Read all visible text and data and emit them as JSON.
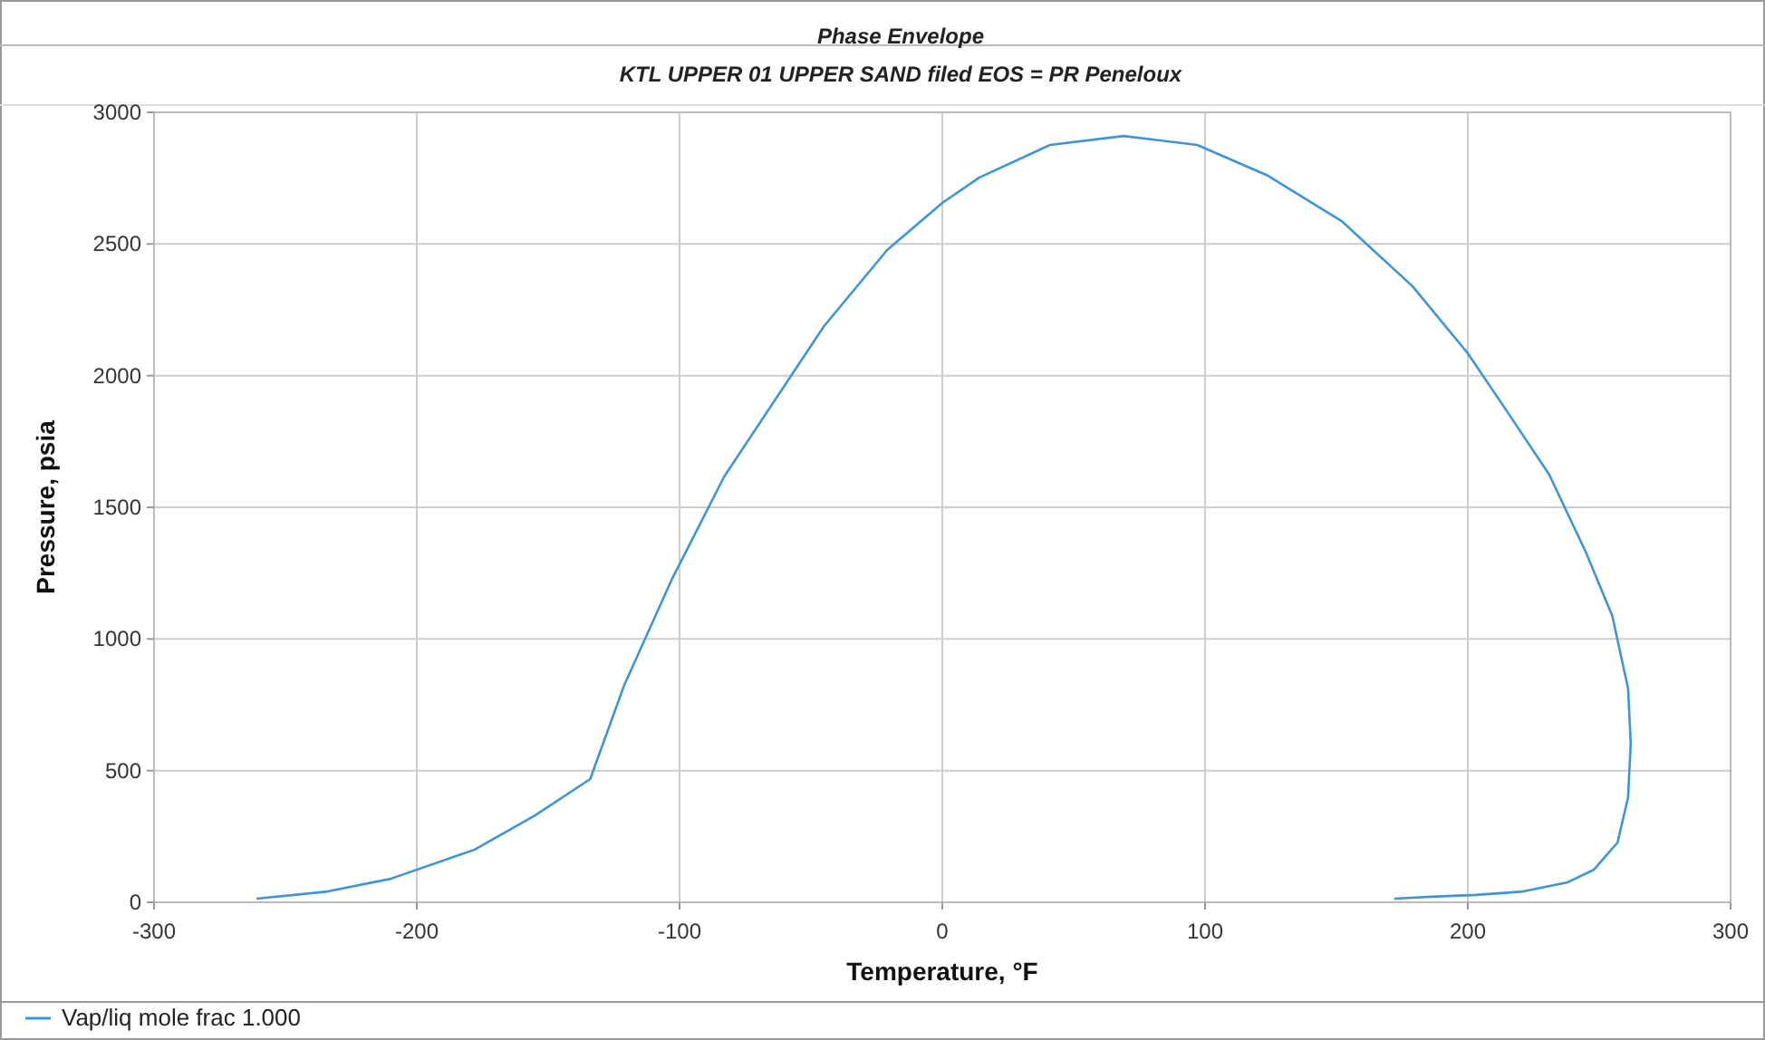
{
  "chart_data": {
    "type": "line",
    "title": "Phase Envelope",
    "subtitle": "KTL UPPER 01 UPPER SAND filed EOS = PR Peneloux",
    "xlabel": "Temperature, °F",
    "ylabel": "Pressure, psia",
    "xlim": [
      -300,
      300
    ],
    "xticks": [
      -300,
      -200,
      -100,
      0,
      100,
      200,
      300
    ],
    "ylim": [
      0,
      3000
    ],
    "yticks": [
      0,
      500,
      1000,
      1500,
      2000,
      2500,
      3000
    ],
    "grid": true,
    "legend": "bottom left",
    "marker": "none",
    "line_style": "solid",
    "series": [
      {
        "name": "Vap/liq mole frac 1.000",
        "color": "#3f94d6",
        "x": [
          -261,
          -234,
          -210,
          -178,
          -155,
          -134,
          -121,
          -103,
          -83,
          -45,
          -21,
          0,
          14,
          41,
          69,
          97,
          124,
          152,
          179,
          200,
          214,
          231,
          245,
          255,
          261,
          262,
          261,
          257,
          248,
          238,
          221,
          203,
          186,
          172
        ],
        "values": [
          14,
          41,
          89,
          200,
          330,
          468,
          826,
          1225,
          1617,
          2188,
          2477,
          2656,
          2752,
          2876,
          2910,
          2876,
          2759,
          2587,
          2339,
          2085,
          1878,
          1624,
          1328,
          1087,
          812,
          605,
          399,
          227,
          124,
          76,
          41,
          28,
          21,
          14
        ]
      }
    ]
  }
}
